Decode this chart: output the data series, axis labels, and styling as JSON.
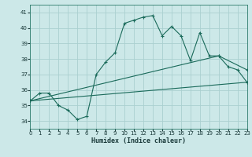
{
  "xlabel": "Humidex (Indice chaleur)",
  "bg_color": "#cce8e8",
  "line_color": "#1a6a5a",
  "grid_color": "#aad0d0",
  "xlim": [
    0,
    23
  ],
  "ylim": [
    33.5,
    41.5
  ],
  "xticks": [
    0,
    1,
    2,
    3,
    4,
    5,
    6,
    7,
    8,
    9,
    10,
    11,
    12,
    13,
    14,
    15,
    16,
    17,
    18,
    19,
    20,
    21,
    22,
    23
  ],
  "yticks": [
    34,
    35,
    36,
    37,
    38,
    39,
    40,
    41
  ],
  "line1_x": [
    0,
    1,
    2,
    3,
    4,
    5,
    6,
    7,
    8,
    9,
    10,
    11,
    12,
    13,
    14,
    15,
    16,
    17,
    18,
    19,
    20,
    21,
    22,
    23
  ],
  "line1_y": [
    35.3,
    35.8,
    35.8,
    35.0,
    34.7,
    34.1,
    34.3,
    37.0,
    37.8,
    38.4,
    40.3,
    40.5,
    40.7,
    40.8,
    39.5,
    40.1,
    39.5,
    37.9,
    39.7,
    38.2,
    38.2,
    37.5,
    37.3,
    36.5
  ],
  "line2_x": [
    0,
    20,
    23
  ],
  "line2_y": [
    35.3,
    38.2,
    37.3
  ],
  "line3_x": [
    0,
    23
  ],
  "line3_y": [
    35.3,
    36.5
  ]
}
